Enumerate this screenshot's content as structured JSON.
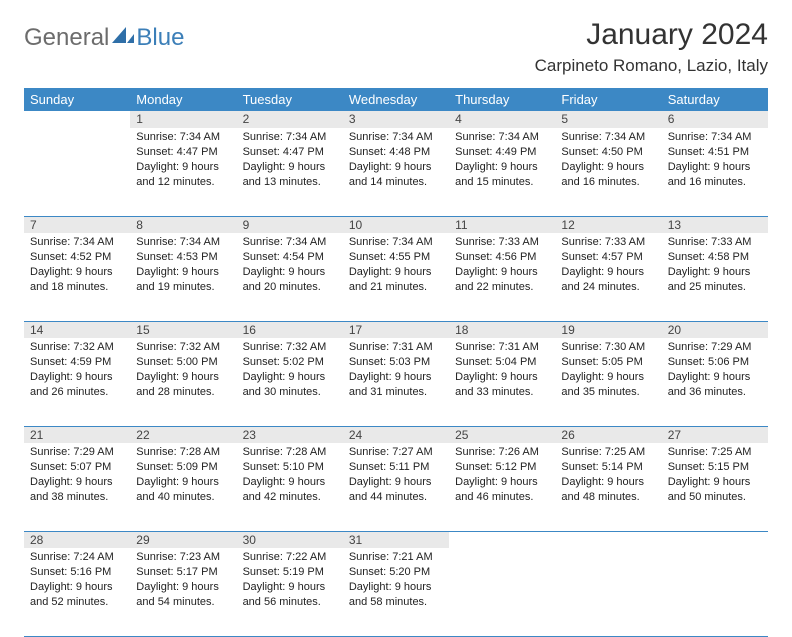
{
  "logo": {
    "text1": "General",
    "text2": "Blue"
  },
  "title": {
    "month": "January 2024",
    "location": "Carpineto Romano, Lazio, Italy"
  },
  "colors": {
    "header_bg": "#3c88c5",
    "header_fg": "#ffffff",
    "daynum_bg": "#e9e9e9",
    "rule": "#3c88c5",
    "logo_gray": "#6c6c6c",
    "logo_blue": "#3c7fb8"
  },
  "dayHeaders": [
    "Sunday",
    "Monday",
    "Tuesday",
    "Wednesday",
    "Thursday",
    "Friday",
    "Saturday"
  ],
  "weeks": [
    {
      "nums": [
        "",
        "1",
        "2",
        "3",
        "4",
        "5",
        "6"
      ],
      "cells": [
        null,
        {
          "sunrise": "Sunrise: 7:34 AM",
          "sunset": "Sunset: 4:47 PM",
          "day1": "Daylight: 9 hours",
          "day2": "and 12 minutes."
        },
        {
          "sunrise": "Sunrise: 7:34 AM",
          "sunset": "Sunset: 4:47 PM",
          "day1": "Daylight: 9 hours",
          "day2": "and 13 minutes."
        },
        {
          "sunrise": "Sunrise: 7:34 AM",
          "sunset": "Sunset: 4:48 PM",
          "day1": "Daylight: 9 hours",
          "day2": "and 14 minutes."
        },
        {
          "sunrise": "Sunrise: 7:34 AM",
          "sunset": "Sunset: 4:49 PM",
          "day1": "Daylight: 9 hours",
          "day2": "and 15 minutes."
        },
        {
          "sunrise": "Sunrise: 7:34 AM",
          "sunset": "Sunset: 4:50 PM",
          "day1": "Daylight: 9 hours",
          "day2": "and 16 minutes."
        },
        {
          "sunrise": "Sunrise: 7:34 AM",
          "sunset": "Sunset: 4:51 PM",
          "day1": "Daylight: 9 hours",
          "day2": "and 16 minutes."
        }
      ]
    },
    {
      "nums": [
        "7",
        "8",
        "9",
        "10",
        "11",
        "12",
        "13"
      ],
      "cells": [
        {
          "sunrise": "Sunrise: 7:34 AM",
          "sunset": "Sunset: 4:52 PM",
          "day1": "Daylight: 9 hours",
          "day2": "and 18 minutes."
        },
        {
          "sunrise": "Sunrise: 7:34 AM",
          "sunset": "Sunset: 4:53 PM",
          "day1": "Daylight: 9 hours",
          "day2": "and 19 minutes."
        },
        {
          "sunrise": "Sunrise: 7:34 AM",
          "sunset": "Sunset: 4:54 PM",
          "day1": "Daylight: 9 hours",
          "day2": "and 20 minutes."
        },
        {
          "sunrise": "Sunrise: 7:34 AM",
          "sunset": "Sunset: 4:55 PM",
          "day1": "Daylight: 9 hours",
          "day2": "and 21 minutes."
        },
        {
          "sunrise": "Sunrise: 7:33 AM",
          "sunset": "Sunset: 4:56 PM",
          "day1": "Daylight: 9 hours",
          "day2": "and 22 minutes."
        },
        {
          "sunrise": "Sunrise: 7:33 AM",
          "sunset": "Sunset: 4:57 PM",
          "day1": "Daylight: 9 hours",
          "day2": "and 24 minutes."
        },
        {
          "sunrise": "Sunrise: 7:33 AM",
          "sunset": "Sunset: 4:58 PM",
          "day1": "Daylight: 9 hours",
          "day2": "and 25 minutes."
        }
      ]
    },
    {
      "nums": [
        "14",
        "15",
        "16",
        "17",
        "18",
        "19",
        "20"
      ],
      "cells": [
        {
          "sunrise": "Sunrise: 7:32 AM",
          "sunset": "Sunset: 4:59 PM",
          "day1": "Daylight: 9 hours",
          "day2": "and 26 minutes."
        },
        {
          "sunrise": "Sunrise: 7:32 AM",
          "sunset": "Sunset: 5:00 PM",
          "day1": "Daylight: 9 hours",
          "day2": "and 28 minutes."
        },
        {
          "sunrise": "Sunrise: 7:32 AM",
          "sunset": "Sunset: 5:02 PM",
          "day1": "Daylight: 9 hours",
          "day2": "and 30 minutes."
        },
        {
          "sunrise": "Sunrise: 7:31 AM",
          "sunset": "Sunset: 5:03 PM",
          "day1": "Daylight: 9 hours",
          "day2": "and 31 minutes."
        },
        {
          "sunrise": "Sunrise: 7:31 AM",
          "sunset": "Sunset: 5:04 PM",
          "day1": "Daylight: 9 hours",
          "day2": "and 33 minutes."
        },
        {
          "sunrise": "Sunrise: 7:30 AM",
          "sunset": "Sunset: 5:05 PM",
          "day1": "Daylight: 9 hours",
          "day2": "and 35 minutes."
        },
        {
          "sunrise": "Sunrise: 7:29 AM",
          "sunset": "Sunset: 5:06 PM",
          "day1": "Daylight: 9 hours",
          "day2": "and 36 minutes."
        }
      ]
    },
    {
      "nums": [
        "21",
        "22",
        "23",
        "24",
        "25",
        "26",
        "27"
      ],
      "cells": [
        {
          "sunrise": "Sunrise: 7:29 AM",
          "sunset": "Sunset: 5:07 PM",
          "day1": "Daylight: 9 hours",
          "day2": "and 38 minutes."
        },
        {
          "sunrise": "Sunrise: 7:28 AM",
          "sunset": "Sunset: 5:09 PM",
          "day1": "Daylight: 9 hours",
          "day2": "and 40 minutes."
        },
        {
          "sunrise": "Sunrise: 7:28 AM",
          "sunset": "Sunset: 5:10 PM",
          "day1": "Daylight: 9 hours",
          "day2": "and 42 minutes."
        },
        {
          "sunrise": "Sunrise: 7:27 AM",
          "sunset": "Sunset: 5:11 PM",
          "day1": "Daylight: 9 hours",
          "day2": "and 44 minutes."
        },
        {
          "sunrise": "Sunrise: 7:26 AM",
          "sunset": "Sunset: 5:12 PM",
          "day1": "Daylight: 9 hours",
          "day2": "and 46 minutes."
        },
        {
          "sunrise": "Sunrise: 7:25 AM",
          "sunset": "Sunset: 5:14 PM",
          "day1": "Daylight: 9 hours",
          "day2": "and 48 minutes."
        },
        {
          "sunrise": "Sunrise: 7:25 AM",
          "sunset": "Sunset: 5:15 PM",
          "day1": "Daylight: 9 hours",
          "day2": "and 50 minutes."
        }
      ]
    },
    {
      "nums": [
        "28",
        "29",
        "30",
        "31",
        "",
        "",
        ""
      ],
      "cells": [
        {
          "sunrise": "Sunrise: 7:24 AM",
          "sunset": "Sunset: 5:16 PM",
          "day1": "Daylight: 9 hours",
          "day2": "and 52 minutes."
        },
        {
          "sunrise": "Sunrise: 7:23 AM",
          "sunset": "Sunset: 5:17 PM",
          "day1": "Daylight: 9 hours",
          "day2": "and 54 minutes."
        },
        {
          "sunrise": "Sunrise: 7:22 AM",
          "sunset": "Sunset: 5:19 PM",
          "day1": "Daylight: 9 hours",
          "day2": "and 56 minutes."
        },
        {
          "sunrise": "Sunrise: 7:21 AM",
          "sunset": "Sunset: 5:20 PM",
          "day1": "Daylight: 9 hours",
          "day2": "and 58 minutes."
        },
        null,
        null,
        null
      ]
    }
  ]
}
